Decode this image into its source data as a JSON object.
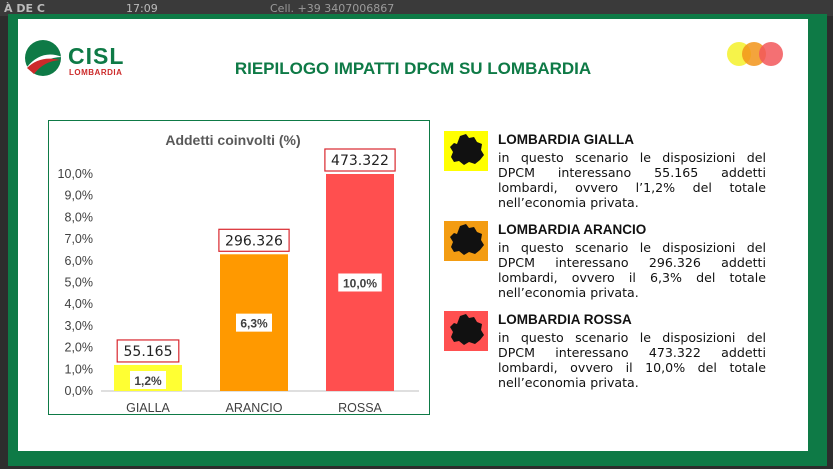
{
  "background": {
    "left_label": "À DE C",
    "time": "17:09",
    "cell": "Cell. +39 3407006867"
  },
  "logo": {
    "name": "CISL",
    "sub": "LOMBARDIA",
    "colors": {
      "green": "#0e7a46",
      "red": "#cc2a2a"
    }
  },
  "slide": {
    "title": "RIEPILOGO IMPATTI DPCM SU LOMBARDIA",
    "dots": [
      "#f5f12a",
      "#f2941a",
      "#f2575a"
    ]
  },
  "chart_data": {
    "type": "bar",
    "title": "Addetti coinvolti (%)",
    "categories": [
      "GIALLA",
      "ARANCIO",
      "ROSSA"
    ],
    "values": [
      1.2,
      6.3,
      10.0
    ],
    "value_labels": [
      "1,2%",
      "6,3%",
      "10,0%"
    ],
    "count_labels": [
      "55.165",
      "296.326",
      "473.322"
    ],
    "colors": [
      "#ffff33",
      "#ff9900",
      "#ff4f4f"
    ],
    "y_ticks": [
      "0,0%",
      "1,0%",
      "2,0%",
      "3,0%",
      "4,0%",
      "5,0%",
      "6,0%",
      "7,0%",
      "8,0%",
      "9,0%",
      "10,0%"
    ],
    "ylim": [
      0,
      10
    ],
    "grid": false,
    "legend": "none"
  },
  "legend": [
    {
      "title": "LOMBARDIA GIALLA",
      "desc": "in questo scenario le disposizioni del DPCM interessano 55.165 addetti lombardi, ovvero l’1,2% del totale nell’economia privata.",
      "color": "#ffff00",
      "icon": "lombardy-map-icon"
    },
    {
      "title": "LOMBARDIA ARANCIO",
      "desc": "in questo scenario le disposizioni del DPCM interessano 296.326 addetti lombardi, ovvero il 6,3% del totale nell’economia privata.",
      "color": "#f39c12",
      "icon": "lombardy-map-icon"
    },
    {
      "title": "LOMBARDIA ROSSA",
      "desc": "in questo scenario le disposizioni del DPCM interessano 473.322 addetti lombardi, ovvero il 10,0% del totale nell’economia privata.",
      "color": "#ff5050",
      "icon": "lombardy-map-icon"
    }
  ]
}
